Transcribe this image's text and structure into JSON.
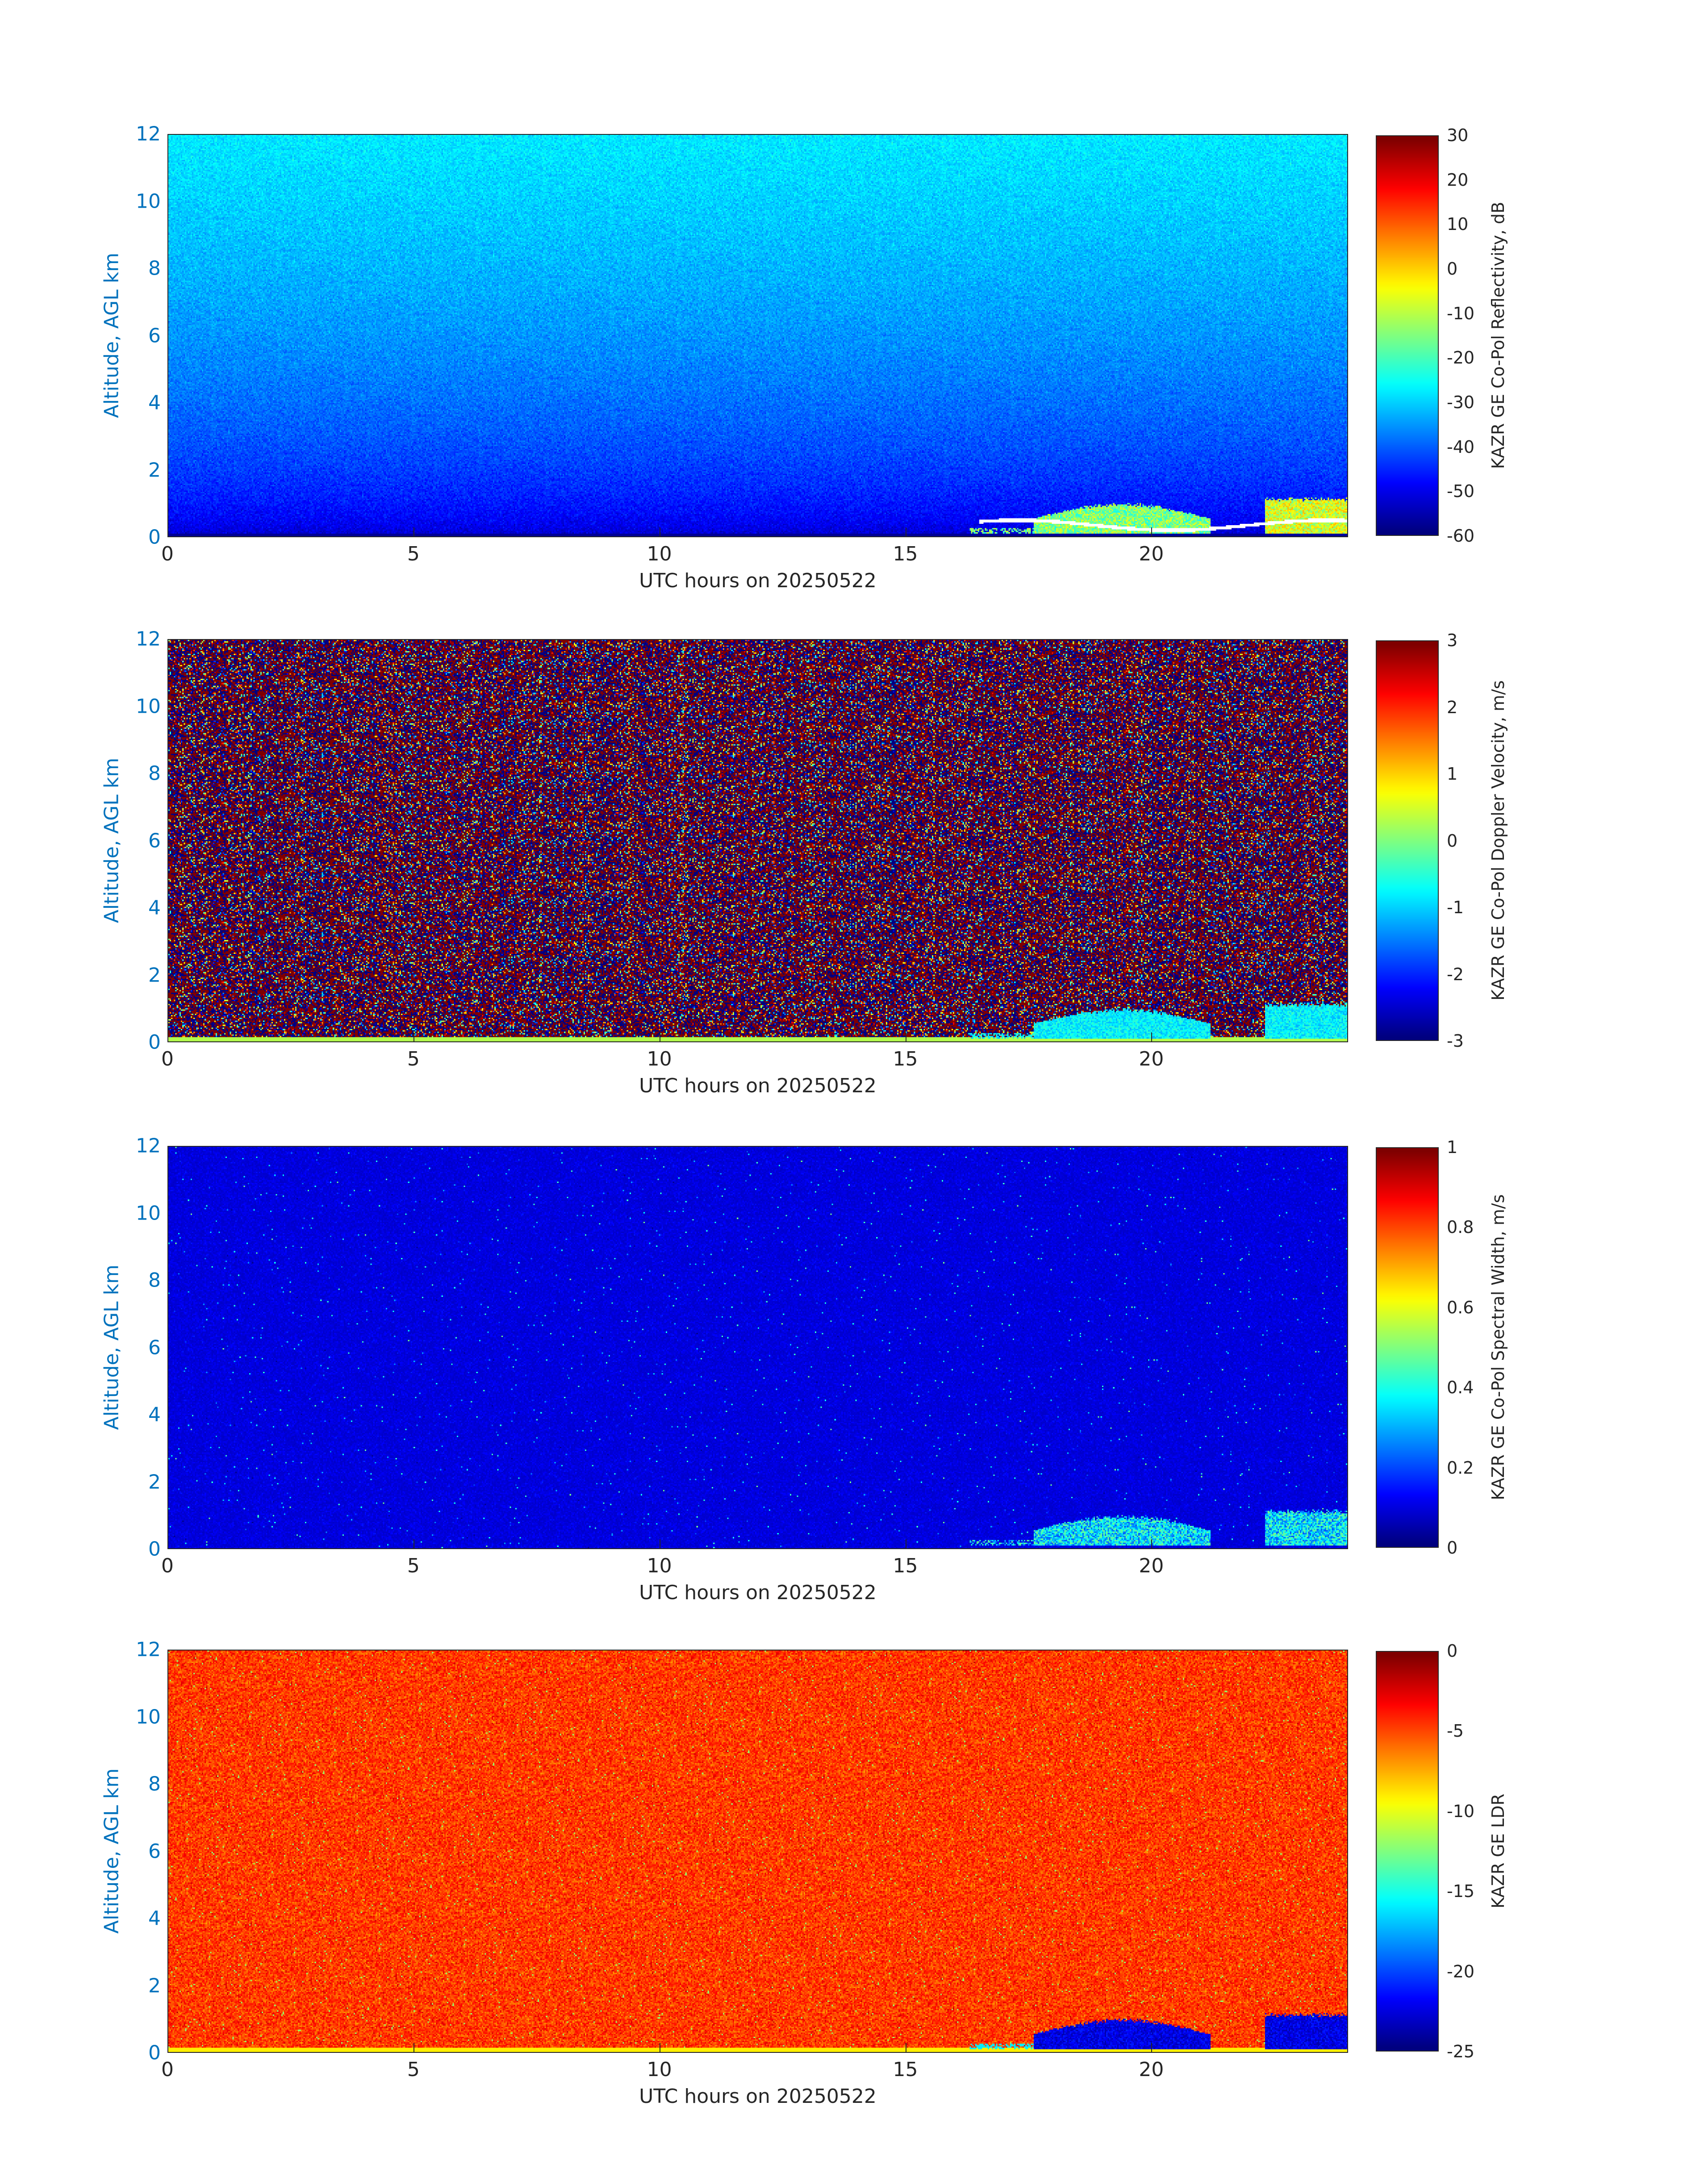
{
  "chart_data": [
    {
      "type": "heatmap",
      "xlabel": "UTC hours on 20250522",
      "ylabel": "Altitude, AGL km",
      "colorbar_label": "KAZR GE Co-Pol Reflectivity, dB",
      "xlim": [
        0,
        24
      ],
      "ylim": [
        0,
        12
      ],
      "xticks": [
        "0",
        "5",
        "10",
        "15",
        "20"
      ],
      "yticks": [
        "0",
        "2",
        "4",
        "6",
        "8",
        "10",
        "12"
      ],
      "clim": [
        -60,
        30
      ],
      "cticks": [
        "30",
        "20",
        "10",
        "0",
        "-10",
        "-20",
        "-30",
        "-40",
        "-50",
        "-60"
      ],
      "colormap": "jet"
    },
    {
      "type": "heatmap",
      "xlabel": "UTC hours on 20250522",
      "ylabel": "Altitude, AGL km",
      "colorbar_label": "KAZR GE Co-Pol Doppler Velocity, m/s",
      "xlim": [
        0,
        24
      ],
      "ylim": [
        0,
        12
      ],
      "xticks": [
        "0",
        "5",
        "10",
        "15",
        "20"
      ],
      "yticks": [
        "0",
        "2",
        "4",
        "6",
        "8",
        "10",
        "12"
      ],
      "clim": [
        -3,
        3
      ],
      "cticks": [
        "3",
        "2",
        "1",
        "0",
        "-1",
        "-2",
        "-3"
      ],
      "colormap": "jet"
    },
    {
      "type": "heatmap",
      "xlabel": "UTC hours on 20250522",
      "ylabel": "Altitude, AGL km",
      "colorbar_label": "KAZR GE Co-Pol Spectral Width, m/s",
      "xlim": [
        0,
        24
      ],
      "ylim": [
        0,
        12
      ],
      "xticks": [
        "0",
        "5",
        "10",
        "15",
        "20"
      ],
      "yticks": [
        "0",
        "2",
        "4",
        "6",
        "8",
        "10",
        "12"
      ],
      "clim": [
        0,
        1
      ],
      "cticks": [
        "1",
        "0.8",
        "0.6",
        "0.4",
        "0.2",
        "0"
      ],
      "colormap": "jet"
    },
    {
      "type": "heatmap",
      "xlabel": "UTC hours on 20250522",
      "ylabel": "Altitude, AGL km",
      "colorbar_label": "KAZR GE LDR",
      "xlim": [
        0,
        24
      ],
      "ylim": [
        0,
        12
      ],
      "xticks": [
        "0",
        "5",
        "10",
        "15",
        "20"
      ],
      "yticks": [
        "0",
        "2",
        "4",
        "6",
        "8",
        "10",
        "12"
      ],
      "clim": [
        -25,
        0
      ],
      "cticks": [
        "0",
        "-5",
        "-10",
        "-15",
        "-20",
        "-25"
      ],
      "colormap": "jet"
    }
  ]
}
